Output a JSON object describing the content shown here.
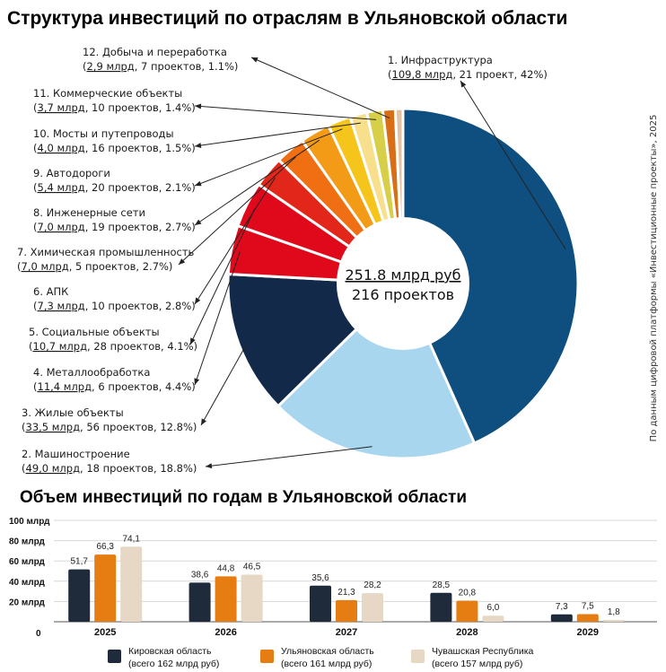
{
  "chart_data": [
    {
      "type": "pie",
      "title": "Структура инвестиций по отраслям в Ульяновской области",
      "center_line1": "251.8 млрд руб",
      "center_line2": "216 проектов",
      "source_note": "По данным цифровой платформы «Инвестиционные проекты», 2025",
      "slices": [
        {
          "name": "1. Инфраструктура",
          "amount": "109,8 млрд",
          "rest": ", 21 проект, 42%)",
          "value": 109.8,
          "color": "#0e4f80"
        },
        {
          "name": "2. Машиностроение",
          "amount": "49,0 млрд",
          "rest": ", 18 проектов, 18.8%)",
          "value": 49.0,
          "color": "#a8d6ee"
        },
        {
          "name": "3. Жилые объекты",
          "amount": "33,5 млрд",
          "rest": ", 56 проектов, 12.8%)",
          "value": 33.5,
          "color": "#13294a"
        },
        {
          "name": "4. Металлообработка",
          "amount": "11,4 млрд",
          "rest": ", 6 проектов, 4.4%)",
          "value": 11.4,
          "color": "#e0091c"
        },
        {
          "name": "5. Социальные объекты",
          "amount": "10,7 млрд",
          "rest": ", 28 проектов, 4.1%)",
          "value": 10.7,
          "color": "#e0091c"
        },
        {
          "name": "6. АПК",
          "amount": "7,3 млрд",
          "rest": ", 10 проектов, 2.8%)",
          "value": 7.3,
          "color": "#e2261a"
        },
        {
          "name": "7. Химическая промышленность",
          "amount": "7,0 млрд",
          "rest": ", 5 проектов, 2.7%)",
          "value": 7.0,
          "color": "#ef6f12"
        },
        {
          "name": "8. Инженерные сети",
          "amount": "7,0 млрд",
          "rest": ", 19 проектов, 2.7%)",
          "value": 7.0,
          "color": "#f39a17"
        },
        {
          "name": "9. Автодороги",
          "amount": "5,4 млрд",
          "rest": ", 20 проектов, 2.1%)",
          "value": 5.4,
          "color": "#f5c51b"
        },
        {
          "name": "10. Мосты и путепроводы",
          "amount": "4,0 млрд",
          "rest": ", 16 проектов, 1.5%)",
          "value": 4.0,
          "color": "#f7df8c"
        },
        {
          "name": "11. Коммерческие объекты",
          "amount": "3,7 млрд",
          "rest": ", 10 проектов, 1.4%)",
          "value": 3.7,
          "color": "#d8cf48"
        },
        {
          "name": "12. Добыча и переработка",
          "amount": "2,9 млрд",
          "rest": ", 7 проектов, 1.1%)",
          "value": 2.9,
          "color": "#d86f16"
        },
        {
          "name": "",
          "amount": "",
          "rest": "",
          "value": 1.8,
          "color": "#e3c2a6"
        }
      ]
    },
    {
      "type": "bar",
      "title": "Объем инвестиций по годам в Ульяновской области",
      "categories": [
        "2025",
        "2026",
        "2027",
        "2028",
        "2029"
      ],
      "ylim": [
        0,
        100
      ],
      "yticks": [
        "0",
        "20 млрд",
        "40 млрд",
        "60 млрд",
        "80 млрд",
        "100 млрд"
      ],
      "series": [
        {
          "name": "Кировская область",
          "note": "(всего 162 млрд руб)",
          "color": "#1f2a3a",
          "values": [
            51.7,
            38.6,
            35.6,
            28.5,
            7.3
          ],
          "labels": [
            "51,7",
            "38,6",
            "35,6",
            "28,5",
            "7,3"
          ]
        },
        {
          "name": "Ульяновская область",
          "note": "(всего 161 млрд руб)",
          "color": "#e57d12",
          "values": [
            66.3,
            44.8,
            21.3,
            20.8,
            7.5
          ],
          "labels": [
            "66,3",
            "44,8",
            "21,3",
            "20,8",
            "7,5"
          ]
        },
        {
          "name": "Чувашская Республика",
          "note": "(всего 157 млрд руб)",
          "color": "#e6d8c4",
          "values": [
            74.1,
            46.5,
            28.2,
            6.0,
            1.8
          ],
          "labels": [
            "74,1",
            "46,5",
            "28,2",
            "6,0",
            "1,8"
          ]
        }
      ]
    }
  ]
}
